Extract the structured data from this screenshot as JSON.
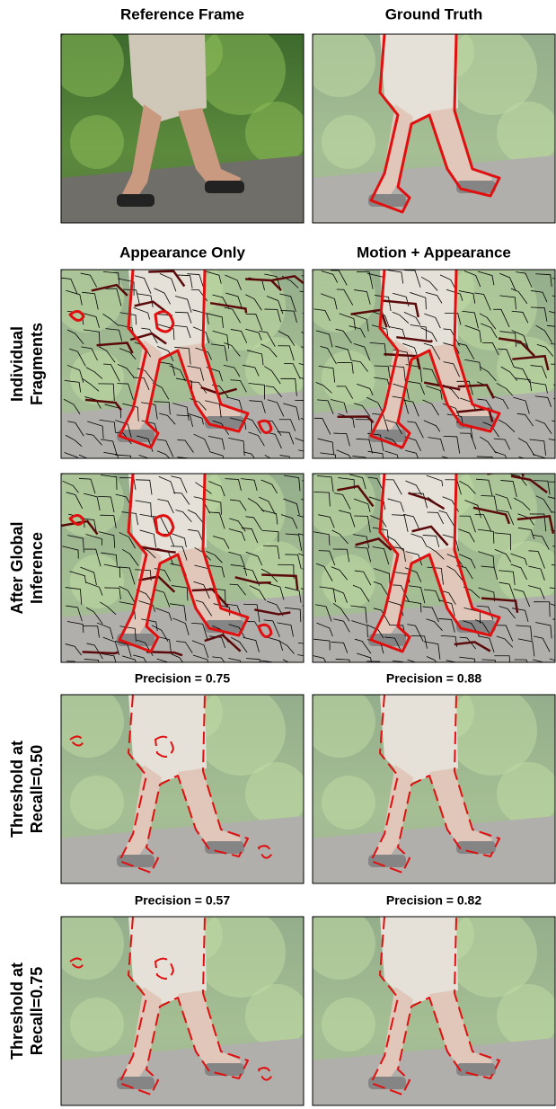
{
  "header_row": [
    "Reference Frame",
    "Ground Truth"
  ],
  "method_headers": [
    "Appearance Only",
    "Motion + Appearance"
  ],
  "rows": [
    {
      "label_lines": [
        "Individual",
        "Fragments"
      ]
    },
    {
      "label_lines": [
        "After Global",
        "Inference"
      ]
    },
    {
      "label_lines": [
        "Threshold at",
        "Recall=0.50"
      ],
      "precision": [
        "Precision = 0.75",
        "Precision = 0.88"
      ]
    },
    {
      "label_lines": [
        "Threshold at",
        "Recall=0.75"
      ],
      "precision": [
        "Precision = 0.57",
        "Precision = 0.82"
      ]
    }
  ]
}
